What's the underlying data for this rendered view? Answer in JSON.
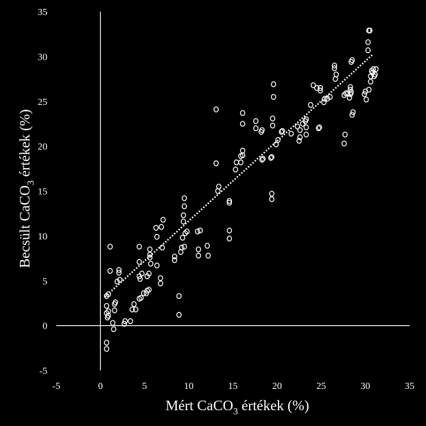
{
  "chart_data": {
    "type": "scatter",
    "xlabel": {
      "main": "Mért CaCO",
      "sub": "3",
      "suffix": " értékek (%)"
    },
    "ylabel": {
      "main": "Becsült CaCO",
      "sub": "3",
      "suffix": " értékek (%)"
    },
    "xlim": [
      -5,
      35
    ],
    "ylim": [
      -5,
      35
    ],
    "xticks": [
      "-5",
      "0",
      "5",
      "10",
      "15",
      "20",
      "25",
      "30",
      "35"
    ],
    "yticks": [
      "-5",
      "0",
      "5",
      "10",
      "15",
      "20",
      "25",
      "30",
      "35"
    ],
    "grid": false,
    "trendline": {
      "style": "dotted",
      "from": [
        0.5,
        3.2
      ],
      "to": [
        30.8,
        30.2
      ]
    },
    "points": [
      [
        0.7,
        -2.6
      ],
      [
        0.7,
        -1.9
      ],
      [
        0.8,
        0.9
      ],
      [
        0.9,
        1.1
      ],
      [
        0.7,
        1.4
      ],
      [
        0.9,
        1.6
      ],
      [
        0.7,
        2.2
      ],
      [
        0.7,
        3.3
      ],
      [
        0.9,
        3.5
      ],
      [
        1.1,
        6.1
      ],
      [
        1.1,
        8.8
      ],
      [
        1.5,
        -0.4
      ],
      [
        1.4,
        0.3
      ],
      [
        1.6,
        1.7
      ],
      [
        1.6,
        2.4
      ],
      [
        1.7,
        2.6
      ],
      [
        1.9,
        4.9
      ],
      [
        2.2,
        5.1
      ],
      [
        2.1,
        5.9
      ],
      [
        2.1,
        6.2
      ],
      [
        2.7,
        0.2
      ],
      [
        2.8,
        0.5
      ],
      [
        3.4,
        0.5
      ],
      [
        3.6,
        1.8
      ],
      [
        4.0,
        1.8
      ],
      [
        3.8,
        2.4
      ],
      [
        4.4,
        3.0
      ],
      [
        4.6,
        3.1
      ],
      [
        4.5,
        5.2
      ],
      [
        4.4,
        5.5
      ],
      [
        4.4,
        7.1
      ],
      [
        4.4,
        8.8
      ],
      [
        4.9,
        3.6
      ],
      [
        5.2,
        3.6
      ],
      [
        5.3,
        3.9
      ],
      [
        5.5,
        4.0
      ],
      [
        5.3,
        5.5
      ],
      [
        5.5,
        5.8
      ],
      [
        5.7,
        6.9
      ],
      [
        5.6,
        7.6
      ],
      [
        5.6,
        7.9
      ],
      [
        5.6,
        8.5
      ],
      [
        4.7,
        5.8
      ],
      [
        6.4,
        6.7
      ],
      [
        6.4,
        9.9
      ],
      [
        6.3,
        10.9
      ],
      [
        6.8,
        4.7
      ],
      [
        6.8,
        5.3
      ],
      [
        7.0,
        8.7
      ],
      [
        6.9,
        11.0
      ],
      [
        7.1,
        11.8
      ],
      [
        8.4,
        7.3
      ],
      [
        8.4,
        7.7
      ],
      [
        8.9,
        1.2
      ],
      [
        8.9,
        3.3
      ],
      [
        9.1,
        8.2
      ],
      [
        9.5,
        8.8
      ],
      [
        9.3,
        9.8
      ],
      [
        9.6,
        10.3
      ],
      [
        9.8,
        10.5
      ],
      [
        9.4,
        11.6
      ],
      [
        9.4,
        12.3
      ],
      [
        9.5,
        13.3
      ],
      [
        9.5,
        14.2
      ],
      [
        9.2,
        8.7
      ],
      [
        11.1,
        7.8
      ],
      [
        11.1,
        8.5
      ],
      [
        11.0,
        10.5
      ],
      [
        11.3,
        10.6
      ],
      [
        12.2,
        7.8
      ],
      [
        12.1,
        8.9
      ],
      [
        13.1,
        24.1
      ],
      [
        13.1,
        18.1
      ],
      [
        13.3,
        15.0
      ],
      [
        13.4,
        15.5
      ],
      [
        14.6,
        9.7
      ],
      [
        14.6,
        10.6
      ],
      [
        14.6,
        13.7
      ],
      [
        14.6,
        13.9
      ],
      [
        15.3,
        17.4
      ],
      [
        15.4,
        18.2
      ],
      [
        15.9,
        18.2
      ],
      [
        15.9,
        18.9
      ],
      [
        16.1,
        19.0
      ],
      [
        16.1,
        19.5
      ],
      [
        16.1,
        22.5
      ],
      [
        16.1,
        23.7
      ],
      [
        17.6,
        22.0
      ],
      [
        17.6,
        22.8
      ],
      [
        18.2,
        21.6
      ],
      [
        18.3,
        21.8
      ],
      [
        18.3,
        18.5
      ],
      [
        18.4,
        18.6
      ],
      [
        19.3,
        18.7
      ],
      [
        19.4,
        18.8
      ],
      [
        19.4,
        14.1
      ],
      [
        19.4,
        14.7
      ],
      [
        19.5,
        22.3
      ],
      [
        19.5,
        23.1
      ],
      [
        19.6,
        25.5
      ],
      [
        19.6,
        26.9
      ],
      [
        19.9,
        20.2
      ],
      [
        20.1,
        20.7
      ],
      [
        20.5,
        21.6
      ],
      [
        20.6,
        21.7
      ],
      [
        21.6,
        21.4
      ],
      [
        22.3,
        22.2
      ],
      [
        22.5,
        20.6
      ],
      [
        22.6,
        21.0
      ],
      [
        22.6,
        21.8
      ],
      [
        22.9,
        22.5
      ],
      [
        23.2,
        22.8
      ],
      [
        23.3,
        22.1
      ],
      [
        23.3,
        23.0
      ],
      [
        23.3,
        21.3
      ],
      [
        23.8,
        24.6
      ],
      [
        24.1,
        26.8
      ],
      [
        24.5,
        26.5
      ],
      [
        24.9,
        26.5
      ],
      [
        24.9,
        26.2
      ],
      [
        24.7,
        22.0
      ],
      [
        24.8,
        22.1
      ],
      [
        25.3,
        24.9
      ],
      [
        25.4,
        25.3
      ],
      [
        25.7,
        25.3
      ],
      [
        26.0,
        25.5
      ],
      [
        26.5,
        28.7
      ],
      [
        26.5,
        29.0
      ],
      [
        26.6,
        27.5
      ],
      [
        26.7,
        28.0
      ],
      [
        27.6,
        25.7
      ],
      [
        27.8,
        25.9
      ],
      [
        27.6,
        20.3
      ],
      [
        27.7,
        21.3
      ],
      [
        28.0,
        25.9
      ],
      [
        28.2,
        25.4
      ],
      [
        28.3,
        25.8
      ],
      [
        28.4,
        26.0
      ],
      [
        28.3,
        26.3
      ],
      [
        28.3,
        26.6
      ],
      [
        28.4,
        29.4
      ],
      [
        28.5,
        29.6
      ],
      [
        28.5,
        23.5
      ],
      [
        28.6,
        23.8
      ],
      [
        29.9,
        25.8
      ],
      [
        30.1,
        25.2
      ],
      [
        30.0,
        26.1
      ],
      [
        30.4,
        26.3
      ],
      [
        30.3,
        30.7
      ],
      [
        30.3,
        31.6
      ],
      [
        30.4,
        32.9
      ],
      [
        30.5,
        32.9
      ],
      [
        30.6,
        27.2
      ],
      [
        30.6,
        27.8
      ],
      [
        30.7,
        28.4
      ],
      [
        30.9,
        28.6
      ],
      [
        31.0,
        27.8
      ],
      [
        31.1,
        28.0
      ],
      [
        31.2,
        28.6
      ],
      [
        30.8,
        28.2
      ]
    ]
  }
}
